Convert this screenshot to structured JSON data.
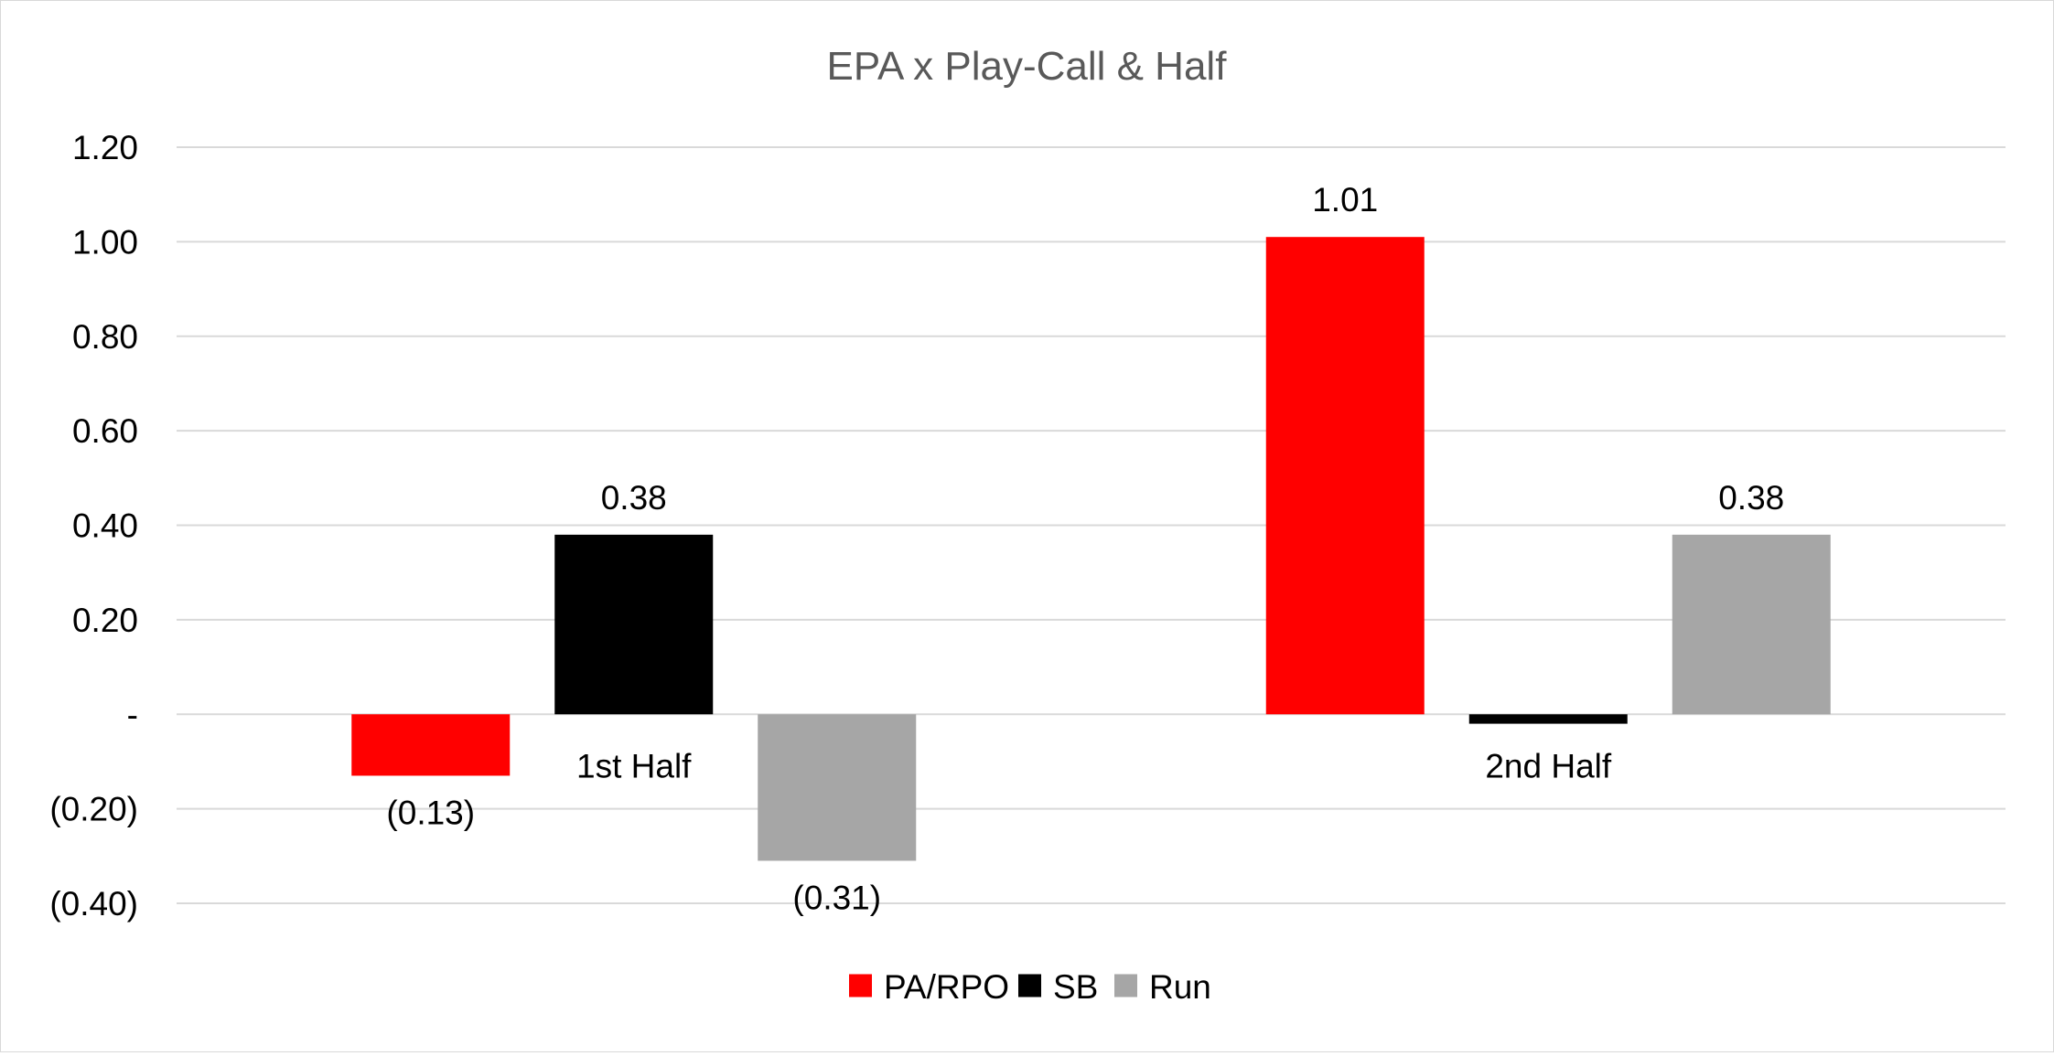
{
  "chart_data": {
    "type": "bar",
    "title": "EPA x Play-Call & Half",
    "categories": [
      "1st Half",
      "2nd Half"
    ],
    "series": [
      {
        "name": "PA/RPO",
        "color": "#ff0000",
        "values": [
          -0.13,
          1.01
        ],
        "labels": [
          "(0.13)",
          "1.01"
        ]
      },
      {
        "name": "SB",
        "color": "#000000",
        "values": [
          0.38,
          -0.02
        ],
        "labels": [
          "0.38",
          ""
        ]
      },
      {
        "name": "Run",
        "color": "#a6a6a6",
        "values": [
          -0.31,
          0.38
        ],
        "labels": [
          "(0.31)",
          "0.38"
        ]
      }
    ],
    "ylim": [
      -0.4,
      1.2
    ],
    "yticks": [
      1.2,
      1.0,
      0.8,
      0.6,
      0.4,
      0.2,
      0,
      -0.2,
      -0.4
    ],
    "ytick_labels": [
      "1.20",
      "1.00",
      "0.80",
      "0.60",
      "0.40",
      "0.20",
      "-",
      "(0.20)",
      "(0.40)"
    ],
    "grid": true,
    "legend_position": "bottom",
    "xlabel": "",
    "ylabel": ""
  }
}
